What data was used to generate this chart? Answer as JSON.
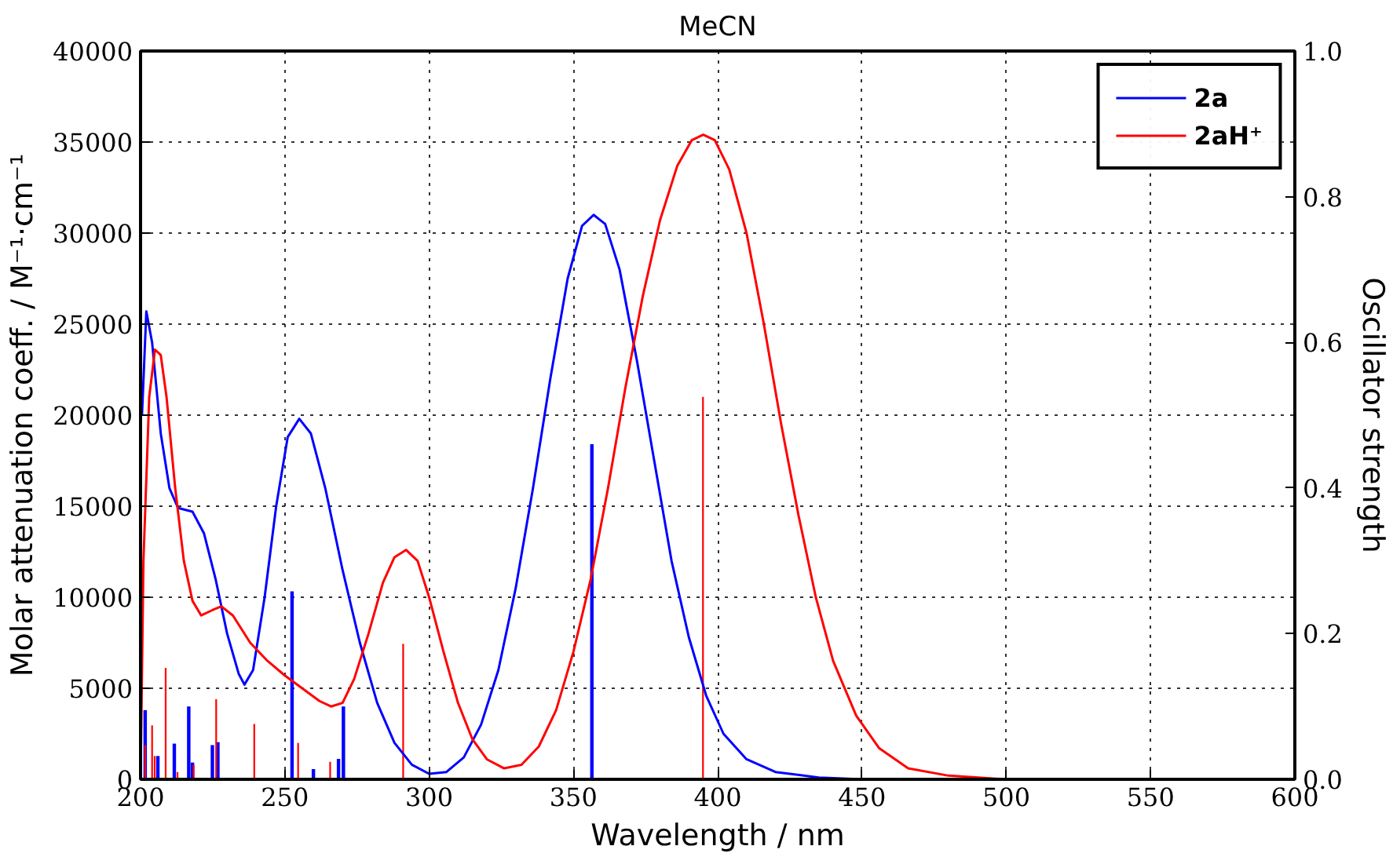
{
  "chart_data": {
    "type": "line",
    "title": "MeCN",
    "xlabel": "Wavelength / nm",
    "ylabel": "Molar attenuation coeff. / M⁻¹·cm⁻¹",
    "y2label": "Oscillator strength",
    "xlim": [
      200,
      600
    ],
    "xticks": [
      200,
      250,
      300,
      350,
      400,
      450,
      500,
      550,
      600
    ],
    "ylim": [
      0,
      40000
    ],
    "yticks": [
      0,
      5000,
      10000,
      15000,
      20000,
      25000,
      30000,
      35000,
      40000
    ],
    "y2lim": [
      0,
      1
    ],
    "y2ticks": [
      {
        "value": 0,
        "label": "0.0"
      },
      {
        "value": 0.2,
        "label": "0.2"
      },
      {
        "value": 0.4,
        "label": "0.4"
      },
      {
        "value": 0.6,
        "label": "0.6"
      },
      {
        "value": 0.8,
        "label": "0.8"
      },
      {
        "value": 1,
        "label": "1.0"
      }
    ],
    "grid": true,
    "legend": "top right",
    "line_style": "solid",
    "series": [
      {
        "name": "2a",
        "color": "#0000ff",
        "x": [
          200.5,
          202,
          204,
          207,
          210,
          213,
          218,
          222,
          226,
          230,
          234,
          236,
          239,
          243,
          247,
          251,
          255,
          259,
          264,
          270,
          276,
          282,
          288,
          294,
          300,
          306,
          312,
          318,
          324,
          330,
          336,
          342,
          348,
          353,
          357,
          361,
          366,
          372,
          378,
          384,
          390,
          396,
          402,
          410,
          420,
          435,
          450,
          500,
          600
        ],
        "values": [
          20000,
          25700,
          24000,
          19000,
          16000,
          14900,
          14700,
          13500,
          11000,
          8000,
          5800,
          5200,
          6000,
          10000,
          15000,
          18800,
          19800,
          19000,
          16000,
          11500,
          7500,
          4200,
          2000,
          800,
          300,
          400,
          1200,
          3000,
          6000,
          10500,
          16000,
          22000,
          27500,
          30400,
          31000,
          30500,
          28000,
          23000,
          17500,
          12000,
          7800,
          4600,
          2500,
          1100,
          400,
          100,
          0,
          0,
          0
        ]
      },
      {
        "name": "2aH⁺",
        "color": "#ff0000",
        "x": [
          200,
          201,
          203,
          205,
          207,
          209,
          212,
          215,
          218,
          221,
          225,
          228,
          232,
          238,
          244,
          250,
          256,
          262,
          266,
          270,
          274,
          279,
          284,
          288,
          292,
          296,
          300,
          305,
          310,
          315,
          320,
          326,
          332,
          338,
          344,
          350,
          356,
          362,
          368,
          374,
          380,
          386,
          391,
          395,
          399,
          404,
          410,
          416,
          422,
          428,
          434,
          440,
          448,
          456,
          466,
          480,
          500,
          550,
          600
        ],
        "values": [
          0,
          12000,
          21000,
          23600,
          23300,
          21000,
          16000,
          12000,
          9800,
          9000,
          9300,
          9500,
          9000,
          7500,
          6500,
          5700,
          5000,
          4300,
          4000,
          4200,
          5500,
          8000,
          10800,
          12200,
          12600,
          12000,
          10000,
          7000,
          4200,
          2200,
          1100,
          600,
          800,
          1800,
          3800,
          7000,
          11000,
          16000,
          21500,
          26500,
          30700,
          33700,
          35100,
          35400,
          35100,
          33500,
          30000,
          25000,
          19500,
          14500,
          10000,
          6500,
          3500,
          1700,
          600,
          200,
          0,
          0,
          0
        ]
      },
      {
        "color": "#0000ff",
        "type": "bar",
        "axis": "y2",
        "x": [
          201.6,
          206,
          211.7,
          216.7,
          218,
          224.9,
          226.8,
          252.5,
          259.9,
          268.6,
          270.3,
          356.4
        ],
        "values": [
          0.095,
          0.032,
          0.049,
          0.1,
          0.023,
          0.047,
          0.051,
          0.258,
          0.014,
          0.028,
          0.1,
          0.46
        ]
      },
      {
        "color": "#ff0000",
        "type": "bar",
        "axis": "y2",
        "x": [
          201.6,
          204,
          204.9,
          208.7,
          212.8,
          218.4,
          226.2,
          239.4,
          254.6,
          265.7,
          291,
          394.9
        ],
        "values": [
          0.047,
          0.074,
          0.032,
          0.153,
          0.01,
          0.02,
          0.11,
          0.076,
          0.05,
          0.024,
          0.186,
          0.525
        ]
      }
    ]
  }
}
